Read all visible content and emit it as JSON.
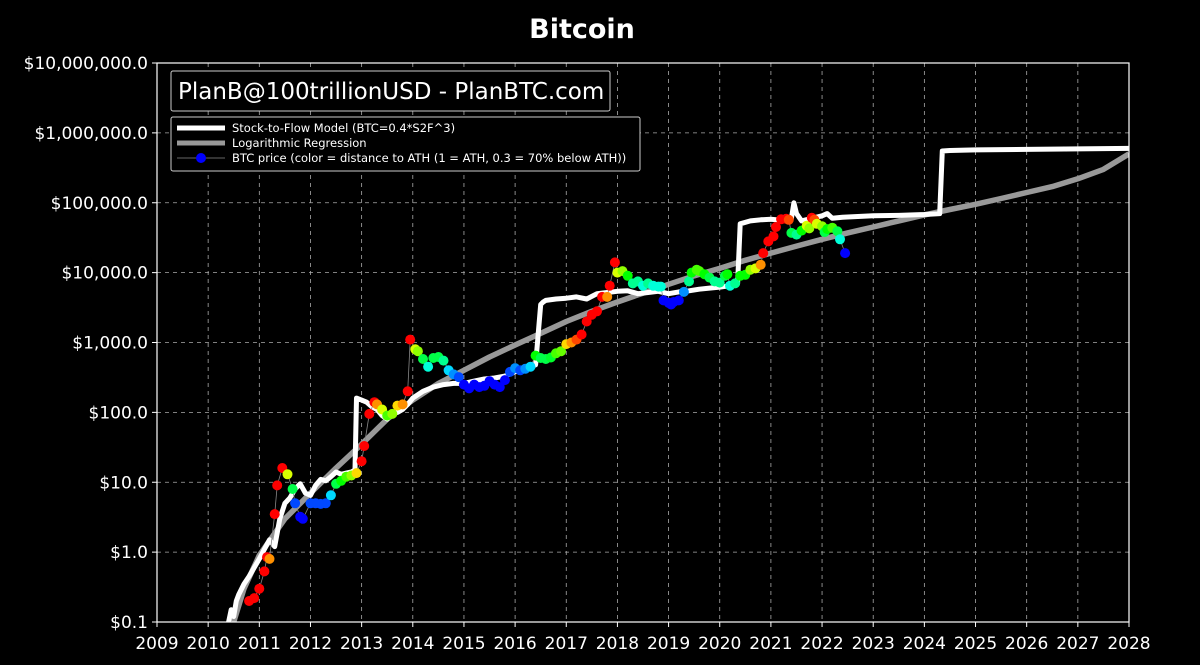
{
  "chart_data": {
    "type": "line",
    "title": "Bitcoin",
    "watermark": "PlanB@100trillionUSD - PlanBTC.com",
    "xlabel": "",
    "ylabel": "",
    "y_scale": "log",
    "xlim": [
      2009,
      2028
    ],
    "ylim": [
      0.1,
      10000000
    ],
    "grid": true,
    "legend_position": "top-left",
    "x_ticks": [
      "2009",
      "2010",
      "2011",
      "2012",
      "2013",
      "2014",
      "2015",
      "2016",
      "2017",
      "2018",
      "2019",
      "2020",
      "2021",
      "2022",
      "2023",
      "2024",
      "2025",
      "2026",
      "2027",
      "2028"
    ],
    "y_ticks": [
      {
        "value": 0.1,
        "label": "$0.1"
      },
      {
        "value": 1,
        "label": "$1.0"
      },
      {
        "value": 10,
        "label": "$10.0"
      },
      {
        "value": 100,
        "label": "$100.0"
      },
      {
        "value": 1000,
        "label": "$1,000.0"
      },
      {
        "value": 10000,
        "label": "$10,000.0"
      },
      {
        "value": 100000,
        "label": "$100,000.0"
      },
      {
        "value": 1000000,
        "label": "$1,000,000.0"
      },
      {
        "value": 10000000,
        "label": "$10,000,000.0"
      }
    ],
    "legend": [
      {
        "label": "Stock-to-Flow Model (BTC=0.4*S2F^3)",
        "color": "#ffffff",
        "style": "thick-line"
      },
      {
        "label": "Logarithmic Regression",
        "color": "#999999",
        "style": "thick-line"
      },
      {
        "label": "BTC price (color = distance to ATH (1 = ATH, 0.3 = 70% below ATH))",
        "color": "#0000ff",
        "style": "line-marker"
      }
    ],
    "series": [
      {
        "name": "Stock-to-Flow Model (BTC=0.4*S2F^3)",
        "color": "#ffffff",
        "x": [
          2010.4,
          2010.45,
          2010.5,
          2010.55,
          2010.6,
          2010.7,
          2010.8,
          2010.9,
          2011.0,
          2011.1,
          2011.2,
          2011.3,
          2011.4,
          2011.5,
          2011.6,
          2011.7,
          2011.8,
          2011.9,
          2012.0,
          2012.1,
          2012.2,
          2012.3,
          2012.4,
          2012.5,
          2012.6,
          2012.7,
          2012.8,
          2012.87,
          2012.9,
          2013.0,
          2013.1,
          2013.2,
          2013.3,
          2013.4,
          2013.5,
          2013.6,
          2013.7,
          2013.8,
          2013.9,
          2014.0,
          2014.2,
          2014.4,
          2014.6,
          2014.8,
          2015.0,
          2015.2,
          2015.4,
          2015.6,
          2015.8,
          2016.0,
          2016.2,
          2016.4,
          2016.5,
          2016.55,
          2016.6,
          2016.8,
          2017.0,
          2017.2,
          2017.4,
          2017.6,
          2017.8,
          2018.0,
          2018.2,
          2018.4,
          2018.6,
          2018.8,
          2019.0,
          2019.2,
          2019.4,
          2019.6,
          2019.8,
          2020.0,
          2020.2,
          2020.35,
          2020.4,
          2020.6,
          2020.8,
          2021.0,
          2021.2,
          2021.4,
          2021.45,
          2021.5,
          2021.6,
          2021.8,
          2022.0,
          2022.1,
          2022.2,
          2022.4,
          2022.6,
          2022.8,
          2023.0,
          2023.5,
          2024.0,
          2024.3,
          2024.35,
          2024.5,
          2025.0,
          2026.0,
          2027.0,
          2028.0
        ],
        "values": [
          0.1,
          0.15,
          0.12,
          0.2,
          0.25,
          0.35,
          0.45,
          0.6,
          0.8,
          1.1,
          1.5,
          1.2,
          3.0,
          5.0,
          6.0,
          8.0,
          9.5,
          7.0,
          6.5,
          9.0,
          11.0,
          10.5,
          12.0,
          14.0,
          13.0,
          13.5,
          14.0,
          15.0,
          160,
          150,
          140,
          120,
          110,
          90,
          80,
          95,
          100,
          110,
          130,
          160,
          200,
          230,
          250,
          260,
          260,
          280,
          300,
          310,
          330,
          380,
          420,
          480,
          3500,
          3800,
          4000,
          4200,
          4300,
          4500,
          4200,
          5000,
          5200,
          5400,
          5500,
          5000,
          5200,
          5400,
          5000,
          5300,
          5500,
          5800,
          6000,
          6200,
          6500,
          7000,
          50000,
          55000,
          57000,
          58000,
          56000,
          60000,
          100000,
          70000,
          55000,
          60000,
          65000,
          70000,
          60000,
          62000,
          63000,
          64000,
          65000,
          66000,
          68000,
          70000,
          550000,
          560000,
          570000,
          580000,
          590000,
          600000
        ]
      },
      {
        "name": "Logarithmic Regression",
        "color": "#999999",
        "x": [
          2010.5,
          2010.7,
          2011.0,
          2011.5,
          2012.0,
          2012.5,
          2013.0,
          2013.5,
          2014.0,
          2014.5,
          2015.0,
          2015.5,
          2016.0,
          2016.5,
          2017.0,
          2017.5,
          2018.0,
          2018.5,
          2019.0,
          2019.5,
          2020.0,
          2020.5,
          2021.0,
          2021.5,
          2022.0,
          2022.5,
          2023.0,
          2023.5,
          2024.0,
          2024.5,
          2025.0,
          2025.5,
          2026.0,
          2026.5,
          2027.0,
          2027.5,
          2028.0
        ],
        "values": [
          0.1,
          0.3,
          0.9,
          3.0,
          7.0,
          16,
          35,
          80,
          150,
          260,
          400,
          620,
          920,
          1350,
          2000,
          2800,
          3800,
          5100,
          6800,
          9000,
          11500,
          15000,
          19000,
          24000,
          30000,
          37000,
          45000,
          55000,
          67000,
          80000,
          95000,
          115000,
          140000,
          170000,
          220000,
          300000,
          500000
        ]
      },
      {
        "name": "BTC price (color = distance to ATH (1 = ATH, 0.3 = 70% below ATH))",
        "points": [
          {
            "x": 2010.8,
            "y": 0.2,
            "c": 1.0
          },
          {
            "x": 2010.9,
            "y": 0.22,
            "c": 1.0
          },
          {
            "x": 2011.0,
            "y": 0.3,
            "c": 1.0
          },
          {
            "x": 2011.1,
            "y": 0.53,
            "c": 1.0
          },
          {
            "x": 2011.15,
            "y": 0.85,
            "c": 1.0
          },
          {
            "x": 2011.2,
            "y": 0.8,
            "c": 0.9
          },
          {
            "x": 2011.3,
            "y": 3.5,
            "c": 1.0
          },
          {
            "x": 2011.35,
            "y": 9.0,
            "c": 1.0
          },
          {
            "x": 2011.45,
            "y": 16,
            "c": 1.0
          },
          {
            "x": 2011.55,
            "y": 13,
            "c": 0.8
          },
          {
            "x": 2011.65,
            "y": 8.0,
            "c": 0.6
          },
          {
            "x": 2011.7,
            "y": 5.0,
            "c": 0.35
          },
          {
            "x": 2011.8,
            "y": 3.2,
            "c": 0.3
          },
          {
            "x": 2011.85,
            "y": 3.0,
            "c": 0.3
          },
          {
            "x": 2012.0,
            "y": 5.0,
            "c": 0.35
          },
          {
            "x": 2012.1,
            "y": 5.0,
            "c": 0.35
          },
          {
            "x": 2012.2,
            "y": 4.9,
            "c": 0.35
          },
          {
            "x": 2012.3,
            "y": 5.0,
            "c": 0.35
          },
          {
            "x": 2012.4,
            "y": 6.5,
            "c": 0.45
          },
          {
            "x": 2012.5,
            "y": 9.5,
            "c": 0.6
          },
          {
            "x": 2012.6,
            "y": 10.5,
            "c": 0.65
          },
          {
            "x": 2012.7,
            "y": 12,
            "c": 0.7
          },
          {
            "x": 2012.8,
            "y": 12.5,
            "c": 0.75
          },
          {
            "x": 2012.9,
            "y": 13.5,
            "c": 0.85
          },
          {
            "x": 2013.0,
            "y": 20,
            "c": 1.0
          },
          {
            "x": 2013.05,
            "y": 33,
            "c": 1.0
          },
          {
            "x": 2013.15,
            "y": 95,
            "c": 1.0
          },
          {
            "x": 2013.25,
            "y": 140,
            "c": 1.0
          },
          {
            "x": 2013.3,
            "y": 130,
            "c": 0.9
          },
          {
            "x": 2013.4,
            "y": 110,
            "c": 0.8
          },
          {
            "x": 2013.5,
            "y": 90,
            "c": 0.7
          },
          {
            "x": 2013.6,
            "y": 95,
            "c": 0.75
          },
          {
            "x": 2013.7,
            "y": 125,
            "c": 0.85
          },
          {
            "x": 2013.8,
            "y": 130,
            "c": 0.9
          },
          {
            "x": 2013.9,
            "y": 200,
            "c": 1.0
          },
          {
            "x": 2013.95,
            "y": 1100,
            "c": 1.0
          },
          {
            "x": 2014.05,
            "y": 800,
            "c": 0.8
          },
          {
            "x": 2014.1,
            "y": 750,
            "c": 0.75
          },
          {
            "x": 2014.2,
            "y": 580,
            "c": 0.6
          },
          {
            "x": 2014.3,
            "y": 450,
            "c": 0.5
          },
          {
            "x": 2014.4,
            "y": 600,
            "c": 0.6
          },
          {
            "x": 2014.5,
            "y": 620,
            "c": 0.6
          },
          {
            "x": 2014.6,
            "y": 550,
            "c": 0.55
          },
          {
            "x": 2014.7,
            "y": 400,
            "c": 0.45
          },
          {
            "x": 2014.8,
            "y": 350,
            "c": 0.4
          },
          {
            "x": 2014.9,
            "y": 320,
            "c": 0.35
          },
          {
            "x": 2015.0,
            "y": 250,
            "c": 0.3
          },
          {
            "x": 2015.1,
            "y": 220,
            "c": 0.3
          },
          {
            "x": 2015.2,
            "y": 250,
            "c": 0.3
          },
          {
            "x": 2015.3,
            "y": 230,
            "c": 0.3
          },
          {
            "x": 2015.4,
            "y": 240,
            "c": 0.3
          },
          {
            "x": 2015.5,
            "y": 280,
            "c": 0.3
          },
          {
            "x": 2015.6,
            "y": 250,
            "c": 0.3
          },
          {
            "x": 2015.7,
            "y": 230,
            "c": 0.3
          },
          {
            "x": 2015.8,
            "y": 290,
            "c": 0.3
          },
          {
            "x": 2015.9,
            "y": 380,
            "c": 0.35
          },
          {
            "x": 2016.0,
            "y": 430,
            "c": 0.4
          },
          {
            "x": 2016.1,
            "y": 400,
            "c": 0.35
          },
          {
            "x": 2016.2,
            "y": 420,
            "c": 0.4
          },
          {
            "x": 2016.3,
            "y": 450,
            "c": 0.45
          },
          {
            "x": 2016.4,
            "y": 650,
            "c": 0.65
          },
          {
            "x": 2016.5,
            "y": 600,
            "c": 0.6
          },
          {
            "x": 2016.6,
            "y": 580,
            "c": 0.6
          },
          {
            "x": 2016.7,
            "y": 610,
            "c": 0.62
          },
          {
            "x": 2016.8,
            "y": 700,
            "c": 0.7
          },
          {
            "x": 2016.9,
            "y": 750,
            "c": 0.72
          },
          {
            "x": 2017.0,
            "y": 950,
            "c": 0.85
          },
          {
            "x": 2017.1,
            "y": 1000,
            "c": 0.9
          },
          {
            "x": 2017.2,
            "y": 1100,
            "c": 0.95
          },
          {
            "x": 2017.3,
            "y": 1300,
            "c": 1.0
          },
          {
            "x": 2017.4,
            "y": 2000,
            "c": 1.0
          },
          {
            "x": 2017.5,
            "y": 2500,
            "c": 1.0
          },
          {
            "x": 2017.6,
            "y": 2800,
            "c": 1.0
          },
          {
            "x": 2017.7,
            "y": 4500,
            "c": 1.0
          },
          {
            "x": 2017.8,
            "y": 4500,
            "c": 0.9
          },
          {
            "x": 2017.85,
            "y": 6500,
            "c": 1.0
          },
          {
            "x": 2017.95,
            "y": 14000,
            "c": 1.0
          },
          {
            "x": 2018.0,
            "y": 10000,
            "c": 0.8
          },
          {
            "x": 2018.1,
            "y": 10500,
            "c": 0.75
          },
          {
            "x": 2018.2,
            "y": 9000,
            "c": 0.65
          },
          {
            "x": 2018.3,
            "y": 7000,
            "c": 0.55
          },
          {
            "x": 2018.4,
            "y": 7500,
            "c": 0.55
          },
          {
            "x": 2018.5,
            "y": 6500,
            "c": 0.5
          },
          {
            "x": 2018.6,
            "y": 7000,
            "c": 0.55
          },
          {
            "x": 2018.7,
            "y": 6500,
            "c": 0.5
          },
          {
            "x": 2018.8,
            "y": 6300,
            "c": 0.5
          },
          {
            "x": 2018.85,
            "y": 6300,
            "c": 0.5
          },
          {
            "x": 2018.9,
            "y": 4000,
            "c": 0.3
          },
          {
            "x": 2019.0,
            "y": 3700,
            "c": 0.3
          },
          {
            "x": 2019.05,
            "y": 3500,
            "c": 0.3
          },
          {
            "x": 2019.1,
            "y": 3800,
            "c": 0.3
          },
          {
            "x": 2019.2,
            "y": 4000,
            "c": 0.3
          },
          {
            "x": 2019.3,
            "y": 5300,
            "c": 0.4
          },
          {
            "x": 2019.4,
            "y": 7500,
            "c": 0.55
          },
          {
            "x": 2019.45,
            "y": 10000,
            "c": 0.65
          },
          {
            "x": 2019.55,
            "y": 11000,
            "c": 0.7
          },
          {
            "x": 2019.6,
            "y": 10500,
            "c": 0.7
          },
          {
            "x": 2019.7,
            "y": 9500,
            "c": 0.65
          },
          {
            "x": 2019.8,
            "y": 8500,
            "c": 0.6
          },
          {
            "x": 2019.9,
            "y": 7500,
            "c": 0.55
          },
          {
            "x": 2020.0,
            "y": 7200,
            "c": 0.55
          },
          {
            "x": 2020.1,
            "y": 9000,
            "c": 0.6
          },
          {
            "x": 2020.15,
            "y": 9500,
            "c": 0.65
          },
          {
            "x": 2020.2,
            "y": 6500,
            "c": 0.5
          },
          {
            "x": 2020.3,
            "y": 7000,
            "c": 0.55
          },
          {
            "x": 2020.4,
            "y": 9000,
            "c": 0.65
          },
          {
            "x": 2020.5,
            "y": 9300,
            "c": 0.65
          },
          {
            "x": 2020.6,
            "y": 11000,
            "c": 0.75
          },
          {
            "x": 2020.7,
            "y": 11500,
            "c": 0.8
          },
          {
            "x": 2020.8,
            "y": 13000,
            "c": 0.9
          },
          {
            "x": 2020.85,
            "y": 19000,
            "c": 1.0
          },
          {
            "x": 2020.95,
            "y": 28000,
            "c": 1.0
          },
          {
            "x": 2021.05,
            "y": 33000,
            "c": 1.0
          },
          {
            "x": 2021.1,
            "y": 45000,
            "c": 1.0
          },
          {
            "x": 2021.2,
            "y": 58000,
            "c": 1.0
          },
          {
            "x": 2021.3,
            "y": 59000,
            "c": 1.0
          },
          {
            "x": 2021.35,
            "y": 57000,
            "c": 0.95
          },
          {
            "x": 2021.4,
            "y": 37000,
            "c": 0.6
          },
          {
            "x": 2021.5,
            "y": 35000,
            "c": 0.55
          },
          {
            "x": 2021.6,
            "y": 40000,
            "c": 0.65
          },
          {
            "x": 2021.7,
            "y": 47000,
            "c": 0.8
          },
          {
            "x": 2021.75,
            "y": 43000,
            "c": 0.75
          },
          {
            "x": 2021.8,
            "y": 61000,
            "c": 1.0
          },
          {
            "x": 2021.85,
            "y": 57000,
            "c": 0.95
          },
          {
            "x": 2021.9,
            "y": 50000,
            "c": 0.8
          },
          {
            "x": 2022.0,
            "y": 46000,
            "c": 0.75
          },
          {
            "x": 2022.05,
            "y": 38000,
            "c": 0.6
          },
          {
            "x": 2022.1,
            "y": 42000,
            "c": 0.65
          },
          {
            "x": 2022.2,
            "y": 44000,
            "c": 0.7
          },
          {
            "x": 2022.3,
            "y": 39000,
            "c": 0.6
          },
          {
            "x": 2022.35,
            "y": 30000,
            "c": 0.5
          },
          {
            "x": 2022.45,
            "y": 19000,
            "c": 0.3
          }
        ]
      }
    ]
  }
}
